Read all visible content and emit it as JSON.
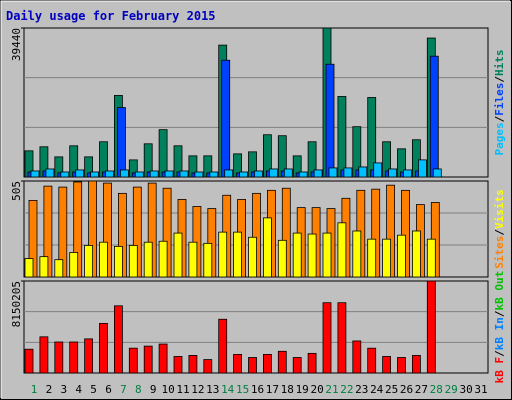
{
  "chart_data": {
    "type": "bar",
    "title": "Daily usage for February 2015",
    "separator": "/",
    "categories": [
      "1",
      "2",
      "3",
      "4",
      "5",
      "6",
      "7",
      "8",
      "9",
      "10",
      "11",
      "12",
      "13",
      "14",
      "15",
      "16",
      "17",
      "18",
      "19",
      "20",
      "21",
      "22",
      "23",
      "24",
      "25",
      "26",
      "27",
      "28",
      "29",
      "30",
      "31"
    ],
    "category_colors": [
      "#008040",
      "#000000",
      "#000000",
      "#000000",
      "#000000",
      "#000000",
      "#008040",
      "#008040",
      "#000000",
      "#000000",
      "#000000",
      "#000000",
      "#000000",
      "#008040",
      "#008040",
      "#000000",
      "#000000",
      "#000000",
      "#000000",
      "#000000",
      "#008040",
      "#008040",
      "#000000",
      "#000000",
      "#000000",
      "#000000",
      "#000000",
      "#008040",
      "#008040",
      "#000000",
      "#000000"
    ],
    "panels": [
      {
        "ylim": [
          0,
          39440
        ],
        "yticks": [
          39440
        ],
        "series": [
          {
            "name": "Hits",
            "color": "#00805c",
            "values": [
              6930,
              8000,
              5330,
              8260,
              5330,
              9330,
              21590,
              4530,
              8790,
              12530,
              8260,
              5600,
              5600,
              34910,
              6130,
              6660,
              11190,
              10930,
              5600,
              9330,
              39440,
              21320,
              13320,
              21050,
              9330,
              7460,
              9860,
              36780,
              0,
              0,
              0
            ]
          },
          {
            "name": "Files",
            "color": "#0040ff",
            "values": [
              1330,
              1600,
              1070,
              1330,
              1070,
              1330,
              18390,
              1070,
              1330,
              1330,
              1330,
              1070,
              1070,
              30910,
              1070,
              1330,
              1600,
              1600,
              1070,
              1330,
              29850,
              1870,
              1870,
              1870,
              1600,
              1330,
              1600,
              31980,
              0,
              0,
              0
            ]
          },
          {
            "name": "Pages",
            "color": "#00c0ff",
            "values": [
              1600,
              2130,
              1330,
              1870,
              1330,
              1600,
              1870,
              1330,
              1600,
              1600,
              1600,
              1330,
              1330,
              1870,
              1330,
              1600,
              2130,
              2130,
              1330,
              1870,
              2400,
              2400,
              2660,
              3730,
              2130,
              1870,
              4530,
              2130,
              0,
              0,
              0
            ]
          }
        ]
      },
      {
        "ylim": [
          0,
          505
        ],
        "yticks": [
          505
        ],
        "series": [
          {
            "name": "Visits",
            "color": "#ffff00",
            "values": [
              97,
              107,
              91,
              129,
              166,
              183,
              161,
              166,
              183,
              188,
              231,
              183,
              177,
              236,
              236,
              209,
              311,
              193,
              231,
              226,
              231,
              285,
              242,
              199,
              199,
              220,
              242,
              199,
              0,
              0,
              0
            ]
          },
          {
            "name": "Sites",
            "color": "#ff8000",
            "values": [
              403,
              478,
              473,
              500,
              505,
              494,
              440,
              473,
              494,
              467,
              408,
              371,
              360,
              430,
              408,
              440,
              456,
              467,
              365,
              365,
              360,
              414,
              456,
              462,
              483,
              456,
              381,
              392,
              0,
              0,
              0
            ]
          }
        ]
      },
      {
        "ylim": [
          0,
          8150205
        ],
        "yticks": [
          8150205
        ],
        "series": [
          {
            "name": "kB Out",
            "color": "#00c000",
            "values": null
          },
          {
            "name": "kB In",
            "color": "#0080ff",
            "values": null
          },
          {
            "name": "kB F",
            "color": "#ff0000",
            "values": [
              2106000,
              3205000,
              2747000,
              2747000,
              3022000,
              4396000,
              5952000,
              2198000,
              2381000,
              2564000,
              1465000,
              1557000,
              1190000,
              4762000,
              1648000,
              1374000,
              1648000,
              1923000,
              1374000,
              1740000,
              6227000,
              6227000,
              2839000,
              2198000,
              1465000,
              1374000,
              1557000,
              8150205,
              0,
              0,
              0
            ]
          }
        ]
      }
    ]
  }
}
